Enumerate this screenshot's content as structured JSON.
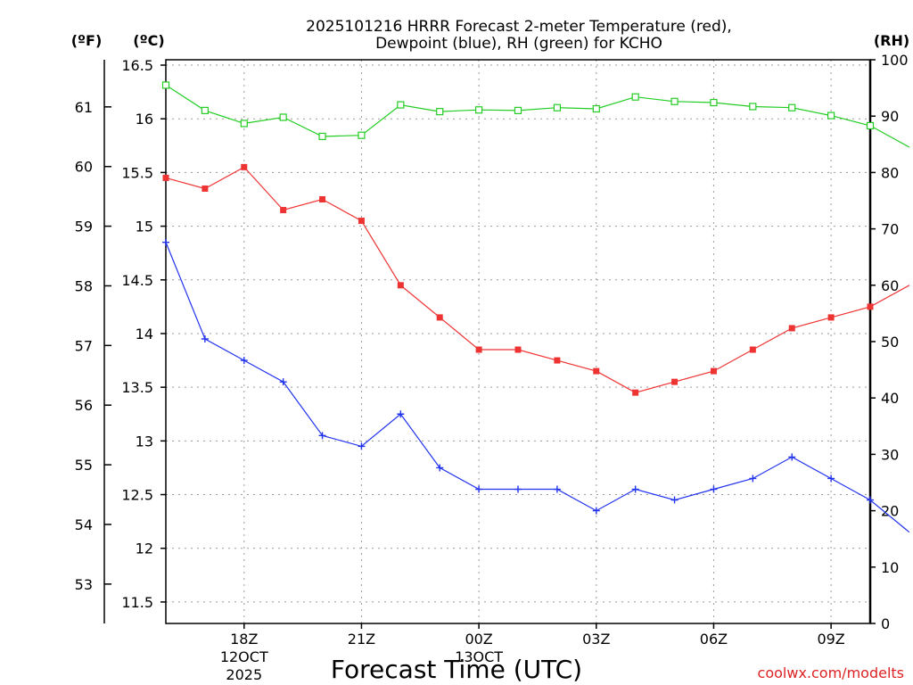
{
  "chart_data": {
    "type": "line",
    "title_line1": "2025101216 HRRR Forecast 2-meter Temperature (red),",
    "title_line2": "Dewpoint (blue), RH (green) for KCHO",
    "xlabel": "Forecast Time (UTC)",
    "credit": "coolwx.com/modelts",
    "unit_f": "(ºF)",
    "unit_c": "(ºC)",
    "unit_rh": "(RH)",
    "hours": [
      16,
      17,
      18,
      19,
      20,
      21,
      22,
      23,
      24,
      25,
      26,
      27,
      28,
      29,
      30,
      31,
      32,
      33,
      34,
      35
    ],
    "x_ticks": [
      {
        "hour": 18,
        "label": "18Z",
        "sub1": "12OCT",
        "sub2": "2025"
      },
      {
        "hour": 21,
        "label": "21Z",
        "sub1": "",
        "sub2": ""
      },
      {
        "hour": 24,
        "label": "00Z",
        "sub1": "13OCT",
        "sub2": ""
      },
      {
        "hour": 27,
        "label": "03Z",
        "sub1": "",
        "sub2": ""
      },
      {
        "hour": 30,
        "label": "06Z",
        "sub1": "",
        "sub2": ""
      },
      {
        "hour": 33,
        "label": "09Z",
        "sub1": "",
        "sub2": ""
      }
    ],
    "xlim": [
      16,
      34
    ],
    "celsius_ticks": [
      "11.5",
      "12",
      "12.5",
      "13",
      "13.5",
      "14",
      "14.5",
      "15",
      "15.5",
      "16",
      "16.5"
    ],
    "ylim_c": [
      11.3,
      16.55
    ],
    "fahrenheit_ticks": [
      "53",
      "54",
      "55",
      "56",
      "57",
      "58",
      "59",
      "60",
      "61"
    ],
    "rh_ticks": [
      "0",
      "10",
      "20",
      "30",
      "40",
      "50",
      "60",
      "70",
      "80",
      "90",
      "100"
    ],
    "ylim_rh": [
      0,
      100
    ],
    "series": [
      {
        "name": "Temperature",
        "unit": "C",
        "color": "#ee3333",
        "marker": "filled-square",
        "values": [
          15.45,
          15.35,
          15.55,
          15.15,
          15.25,
          15.05,
          14.45,
          14.15,
          13.85,
          13.85,
          13.75,
          13.65,
          13.45,
          13.55,
          13.65,
          13.85,
          14.05,
          14.15,
          14.25,
          14.45
        ]
      },
      {
        "name": "Dewpoint",
        "unit": "C",
        "color": "#2233ee",
        "marker": "plus",
        "values": [
          14.85,
          13.95,
          13.75,
          13.55,
          13.05,
          12.95,
          13.25,
          12.75,
          12.55,
          12.55,
          12.55,
          12.35,
          12.55,
          12.45,
          12.55,
          12.65,
          12.85,
          12.65,
          12.45,
          12.15
        ]
      },
      {
        "name": "RH",
        "unit": "%",
        "color": "#22cc22",
        "marker": "open-square",
        "values": [
          95.5,
          91,
          88.7,
          89.8,
          86.4,
          86.6,
          92,
          90.8,
          91.1,
          91,
          91.5,
          91.3,
          93.4,
          92.6,
          92.4,
          91.7,
          91.5,
          90.1,
          88.3,
          84.5
        ]
      }
    ]
  }
}
